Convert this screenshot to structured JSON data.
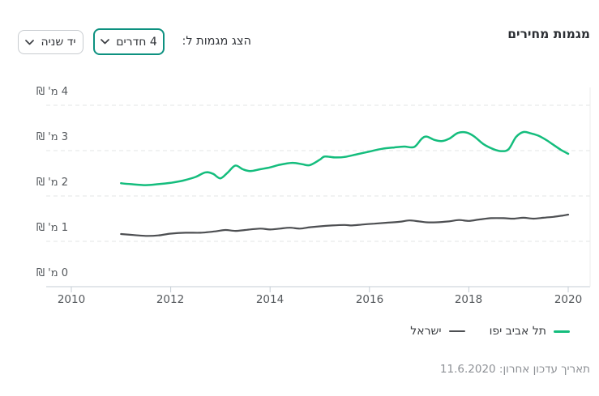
{
  "header": {
    "title": "מגמות מחירים"
  },
  "controls": {
    "label": "הצג מגמות ל:",
    "rooms_dropdown": {
      "value": "4 חדרים"
    },
    "condition_dropdown": {
      "value": "יד שניה"
    }
  },
  "footer": {
    "last_update": "תאריך עדכון אחרון: 11.6.2020"
  },
  "chart_data": {
    "type": "line",
    "title": "מגמות מחירים",
    "unit": "מיליון ₪",
    "grid": "horizontal dashed",
    "legend_position": "bottom-right",
    "x_axis": {
      "min": 2010,
      "max": 2020.4,
      "ticks": [
        "2010",
        "2012",
        "2014",
        "2016",
        "2018",
        "2020"
      ]
    },
    "y_axis": {
      "min": 0,
      "max": 4,
      "tick_labels": [
        "4 מ' ₪",
        "3 מ' ₪",
        "2 מ' ₪",
        "1 מ' ₪",
        "0 מ' ₪"
      ]
    },
    "series": [
      {
        "name": "תל אביב יפו",
        "color": "#14bd7d",
        "points": [
          [
            2011.0,
            2.28
          ],
          [
            2011.2,
            2.26
          ],
          [
            2011.5,
            2.24
          ],
          [
            2011.75,
            2.26
          ],
          [
            2012.0,
            2.29
          ],
          [
            2012.25,
            2.34
          ],
          [
            2012.5,
            2.42
          ],
          [
            2012.7,
            2.52
          ],
          [
            2012.85,
            2.49
          ],
          [
            2013.0,
            2.39
          ],
          [
            2013.15,
            2.52
          ],
          [
            2013.3,
            2.67
          ],
          [
            2013.45,
            2.59
          ],
          [
            2013.6,
            2.55
          ],
          [
            2013.8,
            2.59
          ],
          [
            2014.0,
            2.63
          ],
          [
            2014.2,
            2.69
          ],
          [
            2014.45,
            2.73
          ],
          [
            2014.65,
            2.7
          ],
          [
            2014.8,
            2.68
          ],
          [
            2015.0,
            2.8
          ],
          [
            2015.1,
            2.87
          ],
          [
            2015.3,
            2.85
          ],
          [
            2015.5,
            2.86
          ],
          [
            2015.75,
            2.92
          ],
          [
            2016.0,
            2.98
          ],
          [
            2016.25,
            3.04
          ],
          [
            2016.5,
            3.07
          ],
          [
            2016.7,
            3.09
          ],
          [
            2016.9,
            3.08
          ],
          [
            2017.05,
            3.26
          ],
          [
            2017.15,
            3.31
          ],
          [
            2017.3,
            3.24
          ],
          [
            2017.45,
            3.21
          ],
          [
            2017.6,
            3.26
          ],
          [
            2017.78,
            3.39
          ],
          [
            2017.95,
            3.4
          ],
          [
            2018.1,
            3.32
          ],
          [
            2018.3,
            3.14
          ],
          [
            2018.5,
            3.03
          ],
          [
            2018.65,
            2.99
          ],
          [
            2018.8,
            3.03
          ],
          [
            2018.95,
            3.3
          ],
          [
            2019.1,
            3.41
          ],
          [
            2019.25,
            3.38
          ],
          [
            2019.4,
            3.33
          ],
          [
            2019.55,
            3.24
          ],
          [
            2019.7,
            3.13
          ],
          [
            2019.85,
            3.02
          ],
          [
            2020.0,
            2.93
          ]
        ]
      },
      {
        "name": "ישראל",
        "color": "#4d4f52",
        "points": [
          [
            2011.0,
            1.16
          ],
          [
            2011.25,
            1.14
          ],
          [
            2011.5,
            1.12
          ],
          [
            2011.75,
            1.13
          ],
          [
            2012.0,
            1.17
          ],
          [
            2012.3,
            1.19
          ],
          [
            2012.6,
            1.19
          ],
          [
            2012.9,
            1.22
          ],
          [
            2013.1,
            1.25
          ],
          [
            2013.3,
            1.23
          ],
          [
            2013.5,
            1.25
          ],
          [
            2013.8,
            1.28
          ],
          [
            2014.0,
            1.26
          ],
          [
            2014.2,
            1.28
          ],
          [
            2014.4,
            1.3
          ],
          [
            2014.6,
            1.28
          ],
          [
            2014.8,
            1.31
          ],
          [
            2015.0,
            1.33
          ],
          [
            2015.25,
            1.35
          ],
          [
            2015.5,
            1.36
          ],
          [
            2015.65,
            1.35
          ],
          [
            2015.85,
            1.37
          ],
          [
            2016.1,
            1.39
          ],
          [
            2016.35,
            1.41
          ],
          [
            2016.6,
            1.43
          ],
          [
            2016.8,
            1.46
          ],
          [
            2017.0,
            1.44
          ],
          [
            2017.15,
            1.42
          ],
          [
            2017.35,
            1.42
          ],
          [
            2017.6,
            1.44
          ],
          [
            2017.8,
            1.47
          ],
          [
            2018.0,
            1.45
          ],
          [
            2018.2,
            1.48
          ],
          [
            2018.45,
            1.51
          ],
          [
            2018.7,
            1.51
          ],
          [
            2018.9,
            1.5
          ],
          [
            2019.1,
            1.52
          ],
          [
            2019.3,
            1.5
          ],
          [
            2019.5,
            1.52
          ],
          [
            2019.7,
            1.54
          ],
          [
            2019.9,
            1.57
          ],
          [
            2020.0,
            1.59
          ]
        ]
      }
    ]
  }
}
